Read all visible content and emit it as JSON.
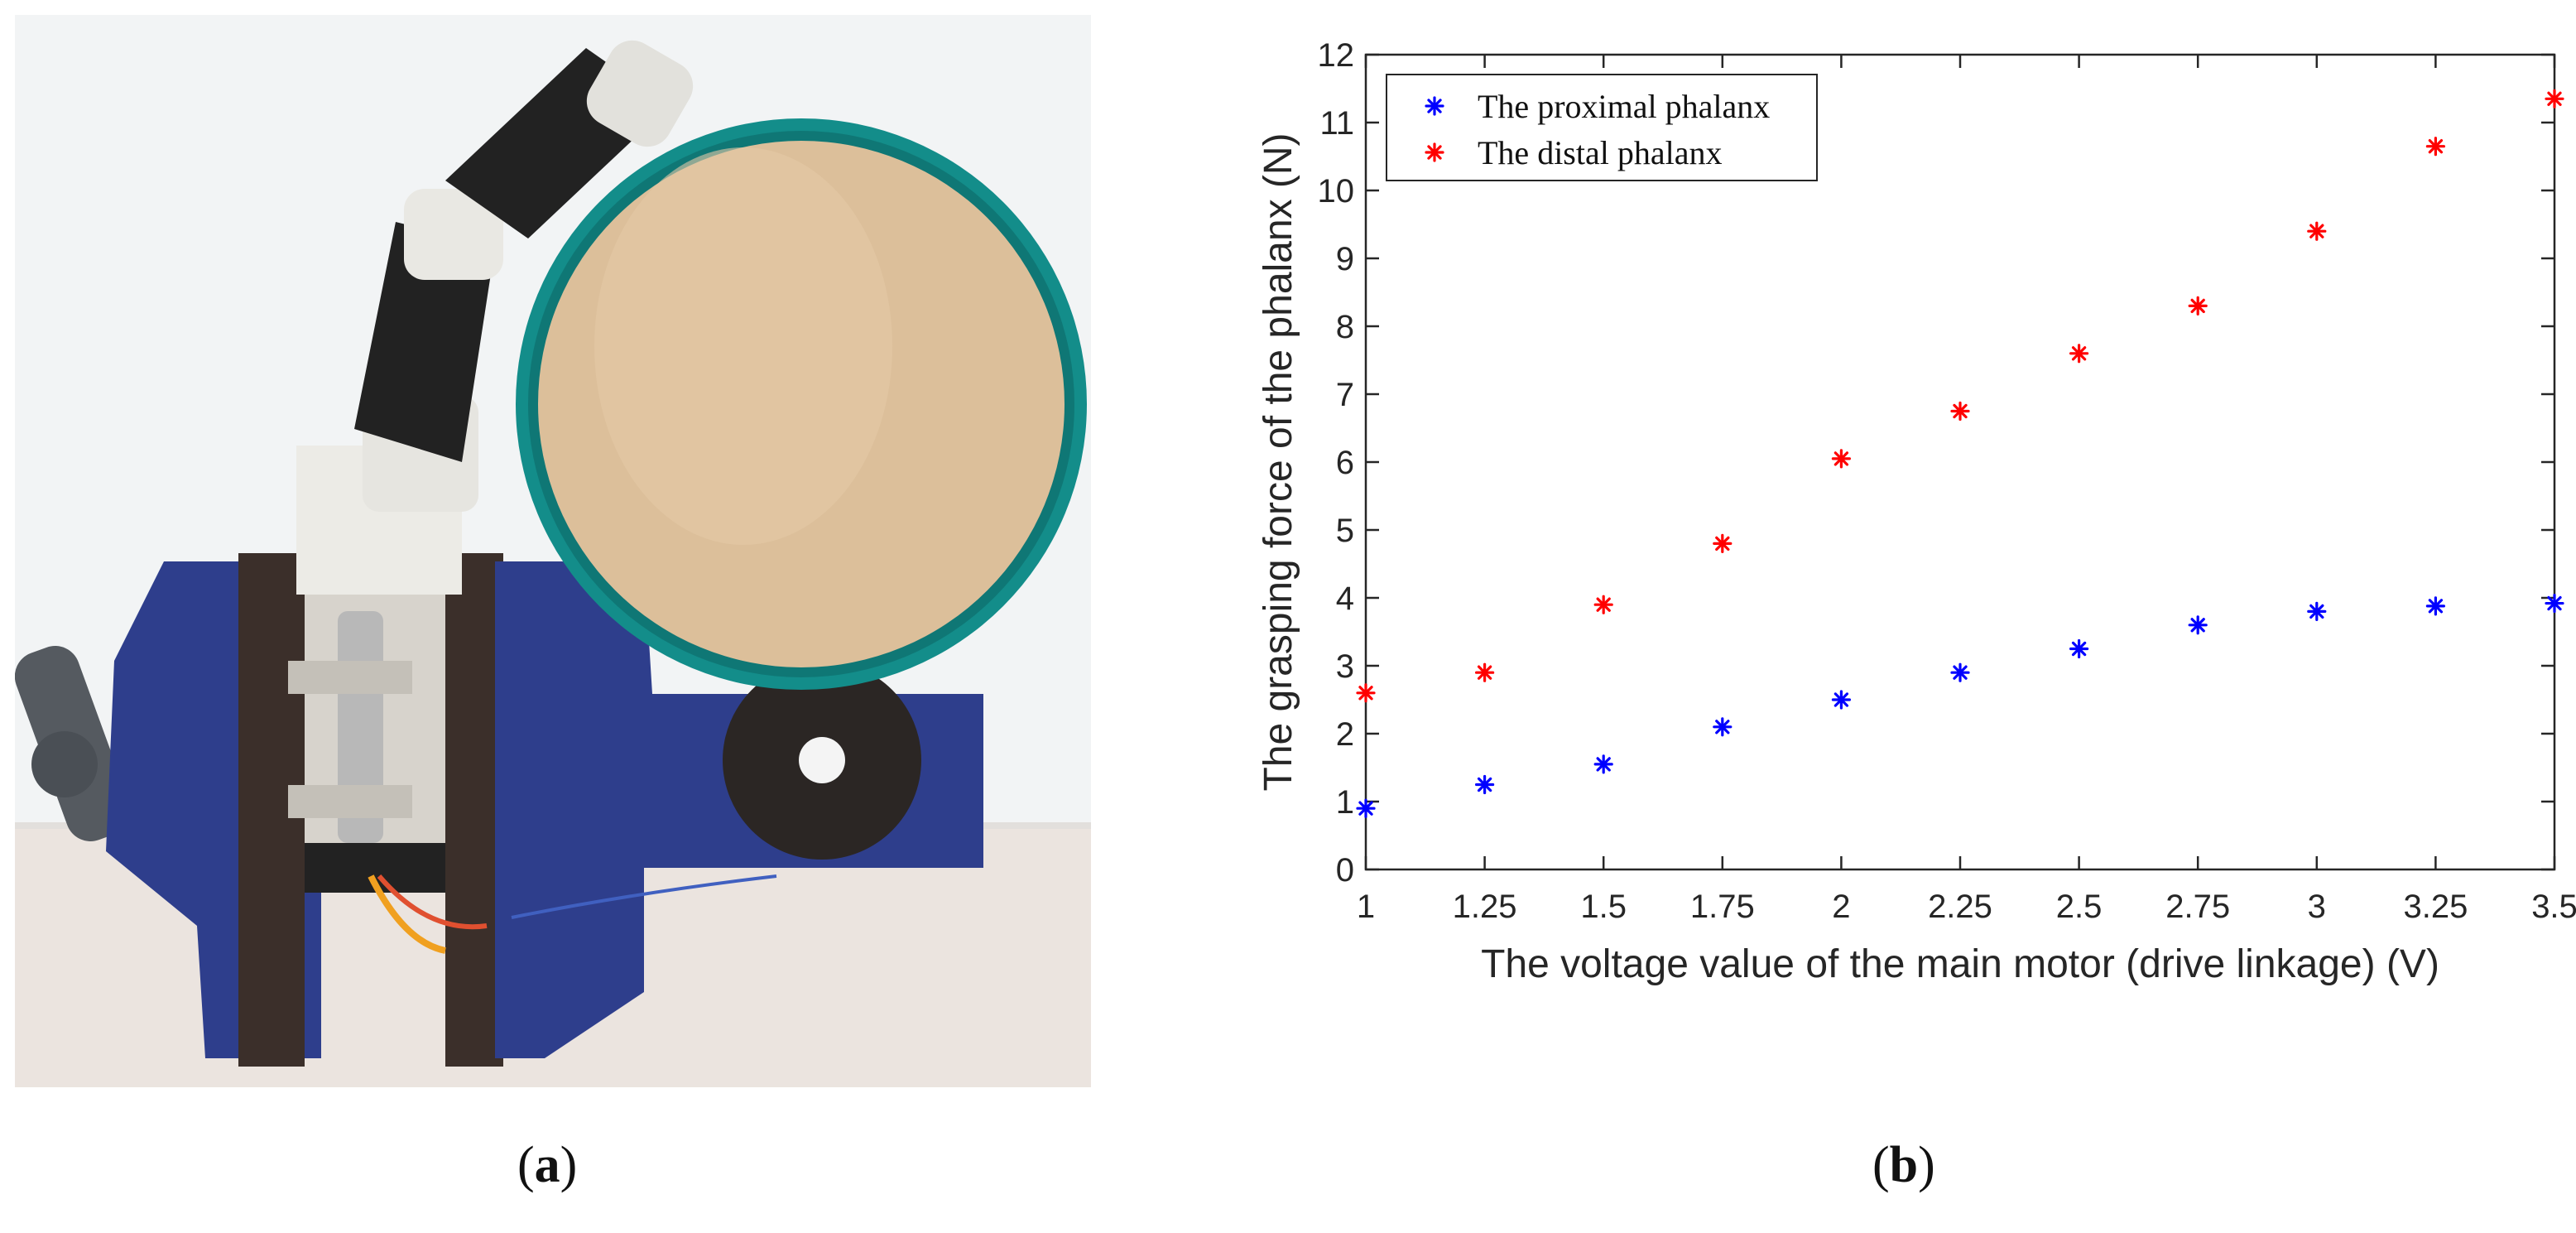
{
  "captions": {
    "a_open": "(",
    "a_letter": "a",
    "a_close": ")",
    "b_open": "(",
    "b_letter": "b",
    "b_close": ")"
  },
  "colors": {
    "proximal": "#0000ff",
    "distal": "#ff0000",
    "axis": "#262626"
  },
  "photo": {
    "description_icon": "robotic-finger-grasping-disc-in-vise-photo"
  },
  "chart_data": {
    "type": "scatter",
    "xlabel": "The voltage value of the main motor (drive linkage) (V)",
    "ylabel": "The grasping force of the phalanx (N)",
    "xlim": [
      1,
      3.5
    ],
    "ylim": [
      0,
      12
    ],
    "x_ticks": [
      1,
      1.25,
      1.5,
      1.75,
      2,
      2.25,
      2.5,
      2.75,
      3,
      3.25,
      3.5
    ],
    "x_tick_labels": [
      "1",
      "1.25",
      "1.5",
      "1.75",
      "2",
      "2.25",
      "2.5",
      "2.75",
      "3",
      "3.25",
      "3.5"
    ],
    "y_ticks": [
      0,
      1,
      2,
      3,
      4,
      5,
      6,
      7,
      8,
      9,
      10,
      11,
      12
    ],
    "y_tick_labels": [
      "0",
      "1",
      "2",
      "3",
      "4",
      "5",
      "6",
      "7",
      "8",
      "9",
      "10",
      "11",
      "12"
    ],
    "marker": "asterisk",
    "grid": false,
    "legend_position": "top-left",
    "x": [
      1,
      1.25,
      1.5,
      1.75,
      2,
      2.25,
      2.5,
      2.75,
      3,
      3.25,
      3.5
    ],
    "series": [
      {
        "name": "The proximal phalanx",
        "color": "#0000ff",
        "values": [
          0.9,
          1.25,
          1.55,
          2.1,
          2.5,
          2.9,
          3.25,
          3.6,
          3.8,
          3.88,
          3.92
        ]
      },
      {
        "name": "The distal phalanx",
        "color": "#ff0000",
        "values": [
          2.6,
          2.9,
          3.9,
          4.8,
          6.05,
          6.75,
          7.6,
          8.3,
          9.4,
          10.65,
          11.35
        ]
      }
    ]
  }
}
